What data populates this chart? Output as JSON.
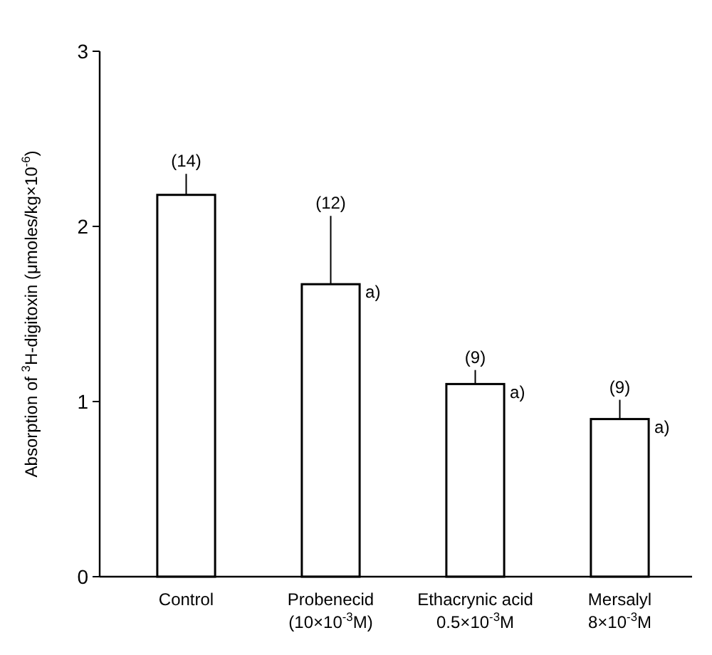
{
  "chart_data": {
    "type": "bar",
    "categories": [
      "Control",
      "Probenecid\n(10×10$^{-3}$M)",
      "Ethacrynic acid\n0.5×10$^{-3}$M",
      "Mersalyl\n8×10$^{-3}$M"
    ],
    "values": [
      2.18,
      1.67,
      1.1,
      0.9
    ],
    "errors": [
      [
        2.18,
        2.3
      ],
      [
        1.67,
        2.06
      ],
      [
        1.1,
        1.18
      ],
      [
        0.9,
        1.01
      ]
    ],
    "color": "#ffffff",
    "ylabel": "Absorption of $^{3}$H-digitoxin (μmoles/kg×10$^{-6}$)",
    "ylim": [
      0,
      3
    ],
    "yticks": [
      0,
      1,
      2,
      3
    ],
    "annotations": [
      {
        "text": "(14)",
        "x": "Control",
        "y": 2.3
      },
      {
        "text": "(12)",
        "x": "Probenecid\n(10×10$^{-3}$M)",
        "y": 2.06
      },
      {
        "text": "a)",
        "x": "Probenecid\n(10×10$^{-3}$M)",
        "y": 1.67
      },
      {
        "text": "(9)",
        "x": "Ethacrynic acid\n0.5×10$^{-3}$M",
        "y": 1.18
      },
      {
        "text": "a)",
        "x": "Ethacrynic acid\n0.5×10$^{-3}$M",
        "y": 1.1
      },
      {
        "text": "(9)",
        "x": "Mersalyl\n8×10$^{-3}$M",
        "y": 1.01
      },
      {
        "text": "a)",
        "x": "Mersalyl\n8×10$^{-3}$M",
        "y": 0.9
      }
    ]
  }
}
